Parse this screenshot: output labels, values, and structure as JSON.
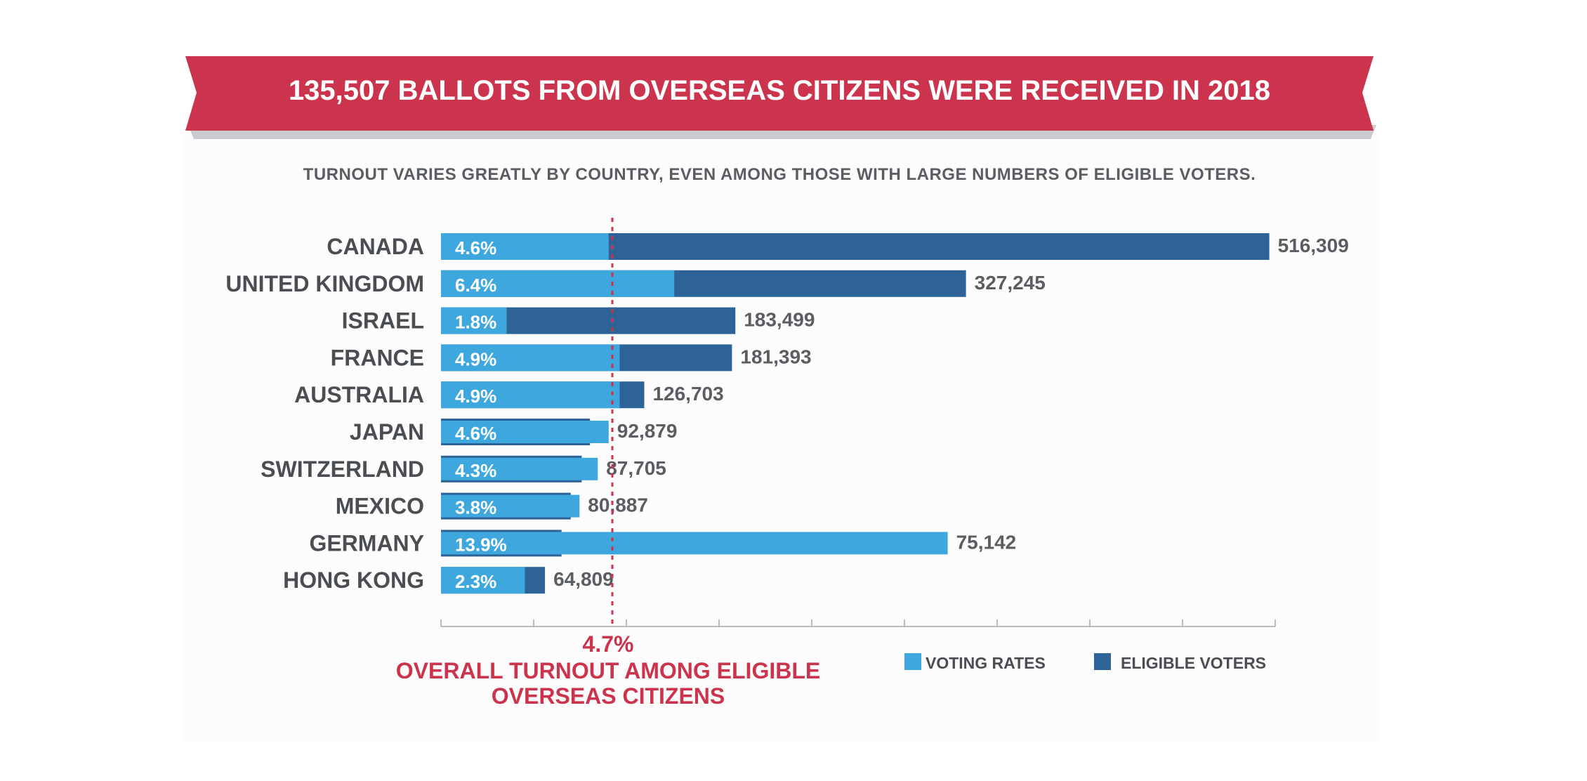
{
  "header": {
    "title": "135,507 BALLOTS FROM OVERSEAS CITIZENS WERE RECEIVED IN 2018",
    "subtitle": "TURNOUT VARIES GREATLY BY COUNTRY, EVEN AMONG THOSE WITH LARGE NUMBERS OF ELIGIBLE VOTERS."
  },
  "colors": {
    "banner": "#cc344d",
    "voting_rate": "#3ea8de",
    "eligible_voters": "#2e6398",
    "reference_line": "#cc344d",
    "text": "#4a4d51"
  },
  "reference": {
    "value_label": "4.7%",
    "caption_line1": "OVERALL TURNOUT AMONG ELIGIBLE",
    "caption_line2": "OVERSEAS CITIZENS"
  },
  "legend": [
    {
      "label": "VOTING RATES",
      "color": "#3ea8de"
    },
    {
      "label": "ELIGIBLE VOTERS",
      "color": "#2e6398"
    }
  ],
  "chart_data": {
    "type": "bar",
    "orientation": "horizontal",
    "title": "135,507 BALLOTS FROM OVERSEAS CITIZENS WERE RECEIVED IN 2018",
    "subtitle": "TURNOUT VARIES GREATLY BY COUNTRY, EVEN AMONG THOSE WITH LARGE NUMBERS OF ELIGIBLE VOTERS.",
    "categories": [
      "CANADA",
      "UNITED KINGDOM",
      "ISRAEL",
      "FRANCE",
      "AUSTRALIA",
      "JAPAN",
      "SWITZERLAND",
      "MEXICO",
      "GERMANY",
      "HONG KONG"
    ],
    "series": [
      {
        "name": "ELIGIBLE VOTERS",
        "values": [
          516309,
          327245,
          183499,
          181393,
          126703,
          92879,
          87705,
          80887,
          75142,
          64809
        ],
        "labels": [
          "516,309",
          "327,245",
          "183,499",
          "181,393",
          "126,703",
          "92,879",
          "87,705",
          "80,887",
          "75,142",
          "64,809"
        ]
      },
      {
        "name": "VOTING RATES",
        "values": [
          4.6,
          6.4,
          1.8,
          4.9,
          4.9,
          4.6,
          4.3,
          3.8,
          13.9,
          2.3
        ],
        "labels": [
          "4.6%",
          "6.4%",
          "1.8%",
          "4.9%",
          "4.9%",
          "4.6%",
          "4.3%",
          "3.8%",
          "13.9%",
          "2.3%"
        ]
      }
    ],
    "reference_line": {
      "value": 4.7,
      "label": "4.7%"
    },
    "xlim_eligible": [
      0,
      520000
    ],
    "xlim_rate": [
      0,
      4.7
    ],
    "x_ticks": 10,
    "legend_position": "bottom-right",
    "grid": false
  }
}
